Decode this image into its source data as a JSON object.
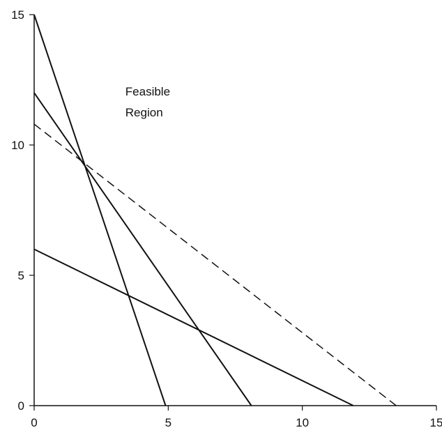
{
  "chart_data": {
    "type": "line",
    "title": "",
    "xlabel": "",
    "ylabel": "",
    "xlim": [
      0,
      15
    ],
    "ylim": [
      0,
      15
    ],
    "x_ticks": [
      0,
      5,
      10,
      15
    ],
    "y_ticks": [
      0,
      5,
      10,
      15
    ],
    "x_tick_labels": [
      "0",
      "5",
      "10",
      "15"
    ],
    "y_tick_labels": [
      "0",
      "5",
      "10",
      "15"
    ],
    "grid": false,
    "annotations": [
      {
        "text": "Feasible",
        "x": 3.4,
        "y": 11.9
      },
      {
        "text": "Region",
        "x": 3.4,
        "y": 11.1
      }
    ],
    "series": [
      {
        "style": "solid",
        "x": [
          0,
          4.9
        ],
        "y": [
          15,
          0
        ]
      },
      {
        "style": "solid",
        "x": [
          0,
          8.1
        ],
        "y": [
          12,
          0
        ]
      },
      {
        "style": "solid",
        "x": [
          0,
          11.9
        ],
        "y": [
          6,
          0
        ]
      },
      {
        "style": "dashed",
        "x": [
          0,
          13.5
        ],
        "y": [
          10.8,
          0
        ]
      }
    ],
    "colors": {
      "line": "#111111",
      "axis": "#111111",
      "dashed": "#111111"
    }
  }
}
